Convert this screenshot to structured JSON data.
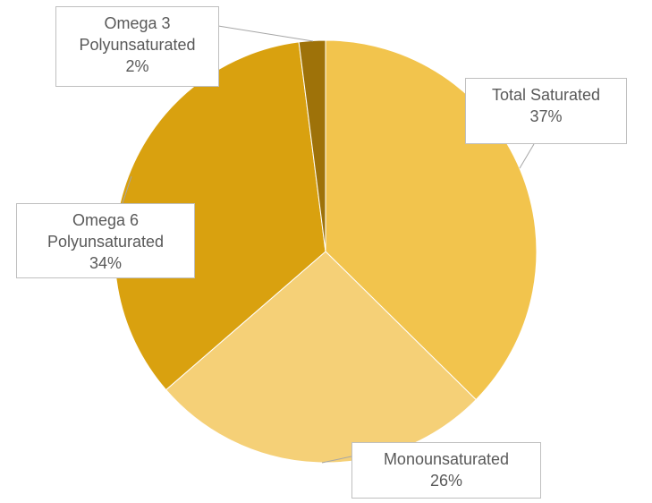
{
  "chart_data": {
    "type": "pie",
    "categories": [
      "Total Saturated",
      "Monounsaturated",
      "Omega 6 Polyunsaturated",
      "Omega 3 Polyunsaturated"
    ],
    "values": [
      37,
      26,
      34,
      2
    ],
    "value_labels": [
      "37%",
      "26%",
      "34%",
      "2%"
    ],
    "colors": [
      "#f2c44d",
      "#f5d077",
      "#d9a10f",
      "#9e7209"
    ]
  }
}
